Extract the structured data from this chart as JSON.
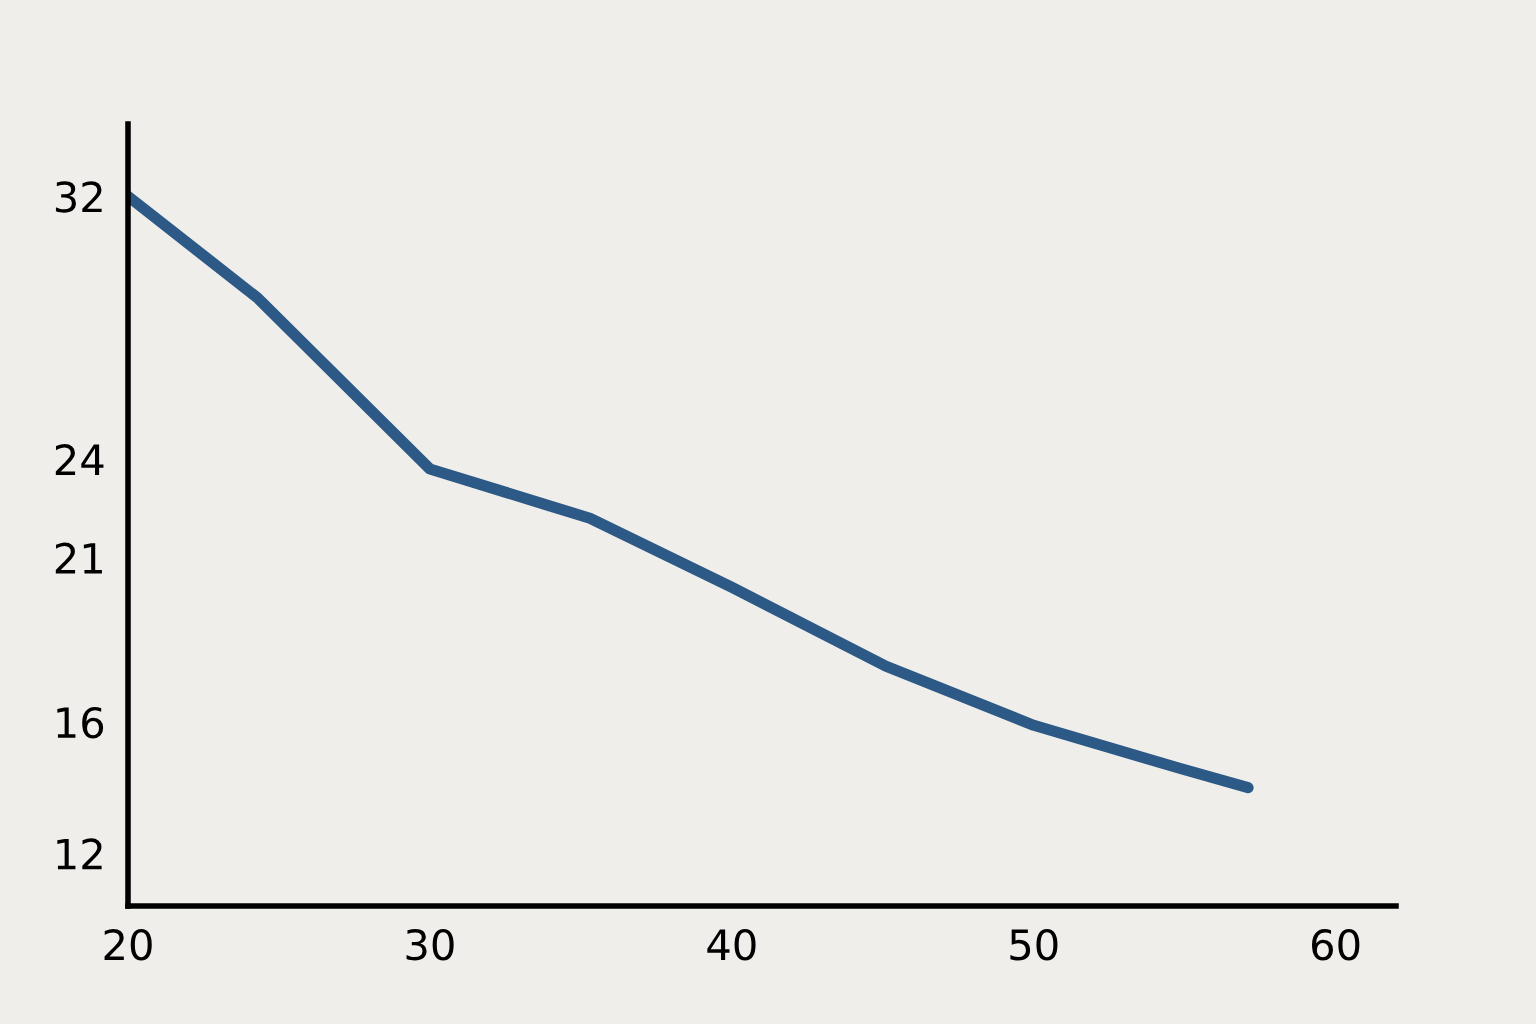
{
  "chart_data": {
    "type": "line",
    "x": [
      20,
      24.3,
      30,
      35.3,
      40,
      45.1,
      50,
      54.8,
      57.1
    ],
    "series": [
      {
        "color": "#2d5986",
        "values": [
          32,
          28.9,
          23.7,
          22.2,
          20.1,
          17.7,
          15.9,
          14.6,
          14.0
        ]
      }
    ],
    "xlim": [
      20,
      62
    ],
    "xticks": [
      20,
      30,
      40,
      50,
      60
    ],
    "ylim": [
      10.4,
      34.2
    ],
    "yticks": [
      12,
      16,
      21,
      24,
      32
    ],
    "grid": false,
    "marker": "none",
    "line_style": "solid"
  }
}
